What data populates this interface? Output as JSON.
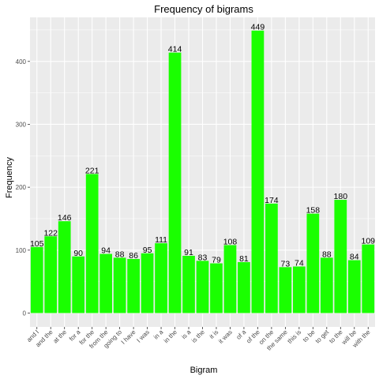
{
  "chart_data": {
    "type": "bar",
    "title": "Frequency of bigrams",
    "xlabel": "Bigram",
    "ylabel": "Frequency",
    "categories": [
      "and I",
      "and the",
      "at the",
      "for a",
      "for the",
      "from the",
      "going to",
      "I have",
      "I was",
      "in a",
      "in the",
      "is a",
      "is the",
      "it is",
      "it was",
      "of a",
      "of the",
      "on the",
      "the same",
      "this is",
      "to be",
      "to get",
      "to the",
      "will be",
      "with the"
    ],
    "values": [
      105,
      122,
      146,
      90,
      221,
      94,
      88,
      86,
      95,
      111,
      414,
      91,
      83,
      79,
      108,
      81,
      449,
      174,
      73,
      74,
      158,
      88,
      180,
      84,
      109
    ],
    "ylim": [
      -22,
      470
    ],
    "yticks": [
      0,
      100,
      200,
      300,
      400
    ],
    "grid": true,
    "colors": {
      "bar": "#1aff00",
      "panel": "#ebebeb",
      "grid": "#ffffff"
    }
  }
}
